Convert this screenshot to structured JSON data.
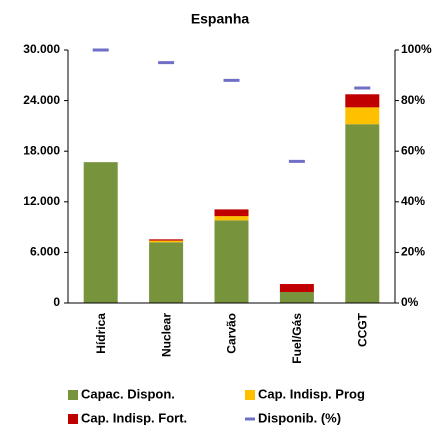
{
  "chart_data": {
    "type": "bar",
    "stacked": true,
    "title": "Espanha",
    "categories": [
      "Hídrica",
      "Nuclear",
      "Carvão",
      "Fuel/Gás",
      "CCGT"
    ],
    "series": [
      {
        "name": "Capac. Dispon.",
        "color": "#77933c",
        "values": [
          16700,
          7200,
          9800,
          1300,
          21200
        ]
      },
      {
        "name": "Cap. Indisp. Prog",
        "color": "#ffc000",
        "values": [
          0,
          200,
          500,
          0,
          2000
        ]
      },
      {
        "name": "Cap. Indisp. Fort.",
        "color": "#c00000",
        "values": [
          0,
          150,
          800,
          950,
          1550
        ]
      },
      {
        "name": "Disponib. (%)",
        "color": "#6f6fc8",
        "axis": "y2",
        "values": [
          100,
          95,
          88,
          56,
          85
        ]
      }
    ],
    "ylim": [
      0,
      30000
    ],
    "yticks": [
      0,
      {
        "value": 6000,
        "label": "6.000"
      },
      {
        "value": 12000,
        "label": "12.000"
      },
      {
        "value": 18000,
        "label": "18.000"
      },
      {
        "value": 24000,
        "label": "24.000"
      },
      {
        "value": 30000,
        "label": "30.000"
      }
    ],
    "y2lim": [
      0,
      100
    ],
    "y2ticks": [
      {
        "value": 0,
        "label": "0%"
      },
      {
        "value": 20,
        "label": "20%"
      },
      {
        "value": 40,
        "label": "40%"
      },
      {
        "value": 60,
        "label": "60%"
      },
      {
        "value": 80,
        "label": "80%"
      },
      {
        "value": 100,
        "label": "100%"
      }
    ],
    "grid": false
  }
}
